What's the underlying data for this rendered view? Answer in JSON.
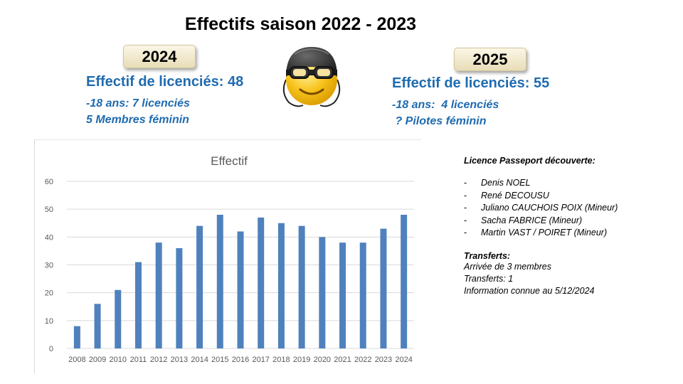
{
  "header": {
    "title": "Effectifs saison 2022 - 2023"
  },
  "left_panel": {
    "year": "2024",
    "effectif": "Effectif de  licenciés: 48",
    "minors": "-18 ans: 7 licenciés",
    "female": "5 Membres féminin"
  },
  "right_panel": {
    "year": "2025",
    "effectif": "Effectif de  licenciés: 55",
    "minors": "-18 ans:  4 licenciés",
    "female": " ? Pilotes féminin"
  },
  "mascot": {
    "icon": "smiley-pilot-helmet-icon",
    "color": "#f7c21a"
  },
  "notes": {
    "licence_heading": "Licence Passeport découverte:",
    "licence_list": [
      "Denis NOEL",
      "René DECOUSU",
      "Juliano CAUCHOIS POIX (Mineur)",
      "Sacha FABRICE  (Mineur)",
      "Martin VAST / POIRET (Mineur)"
    ],
    "transfers_heading": "Transferts:",
    "transfers_lines": [
      "Arrivée de 3 membres",
      "Transferts: 1",
      "Information connue au 5/12/2024"
    ]
  },
  "chart_data": {
    "type": "bar",
    "title": "Effectif",
    "xlabel": "",
    "ylabel": "",
    "categories": [
      "2008",
      "2009",
      "2010",
      "2011",
      "2012",
      "2013",
      "2014",
      "2015",
      "2016",
      "2017",
      "2018",
      "2019",
      "2020",
      "2021",
      "2022",
      "2023",
      "2024"
    ],
    "values": [
      8,
      16,
      21,
      31,
      38,
      36,
      44,
      48,
      42,
      47,
      45,
      44,
      40,
      38,
      38,
      43,
      48
    ],
    "ylim": [
      0,
      60
    ],
    "yticks": [
      0,
      10,
      20,
      30,
      40,
      50,
      60
    ],
    "grid": true,
    "bar_color": "#4f81bd",
    "grid_color": "#d9d9d9"
  }
}
